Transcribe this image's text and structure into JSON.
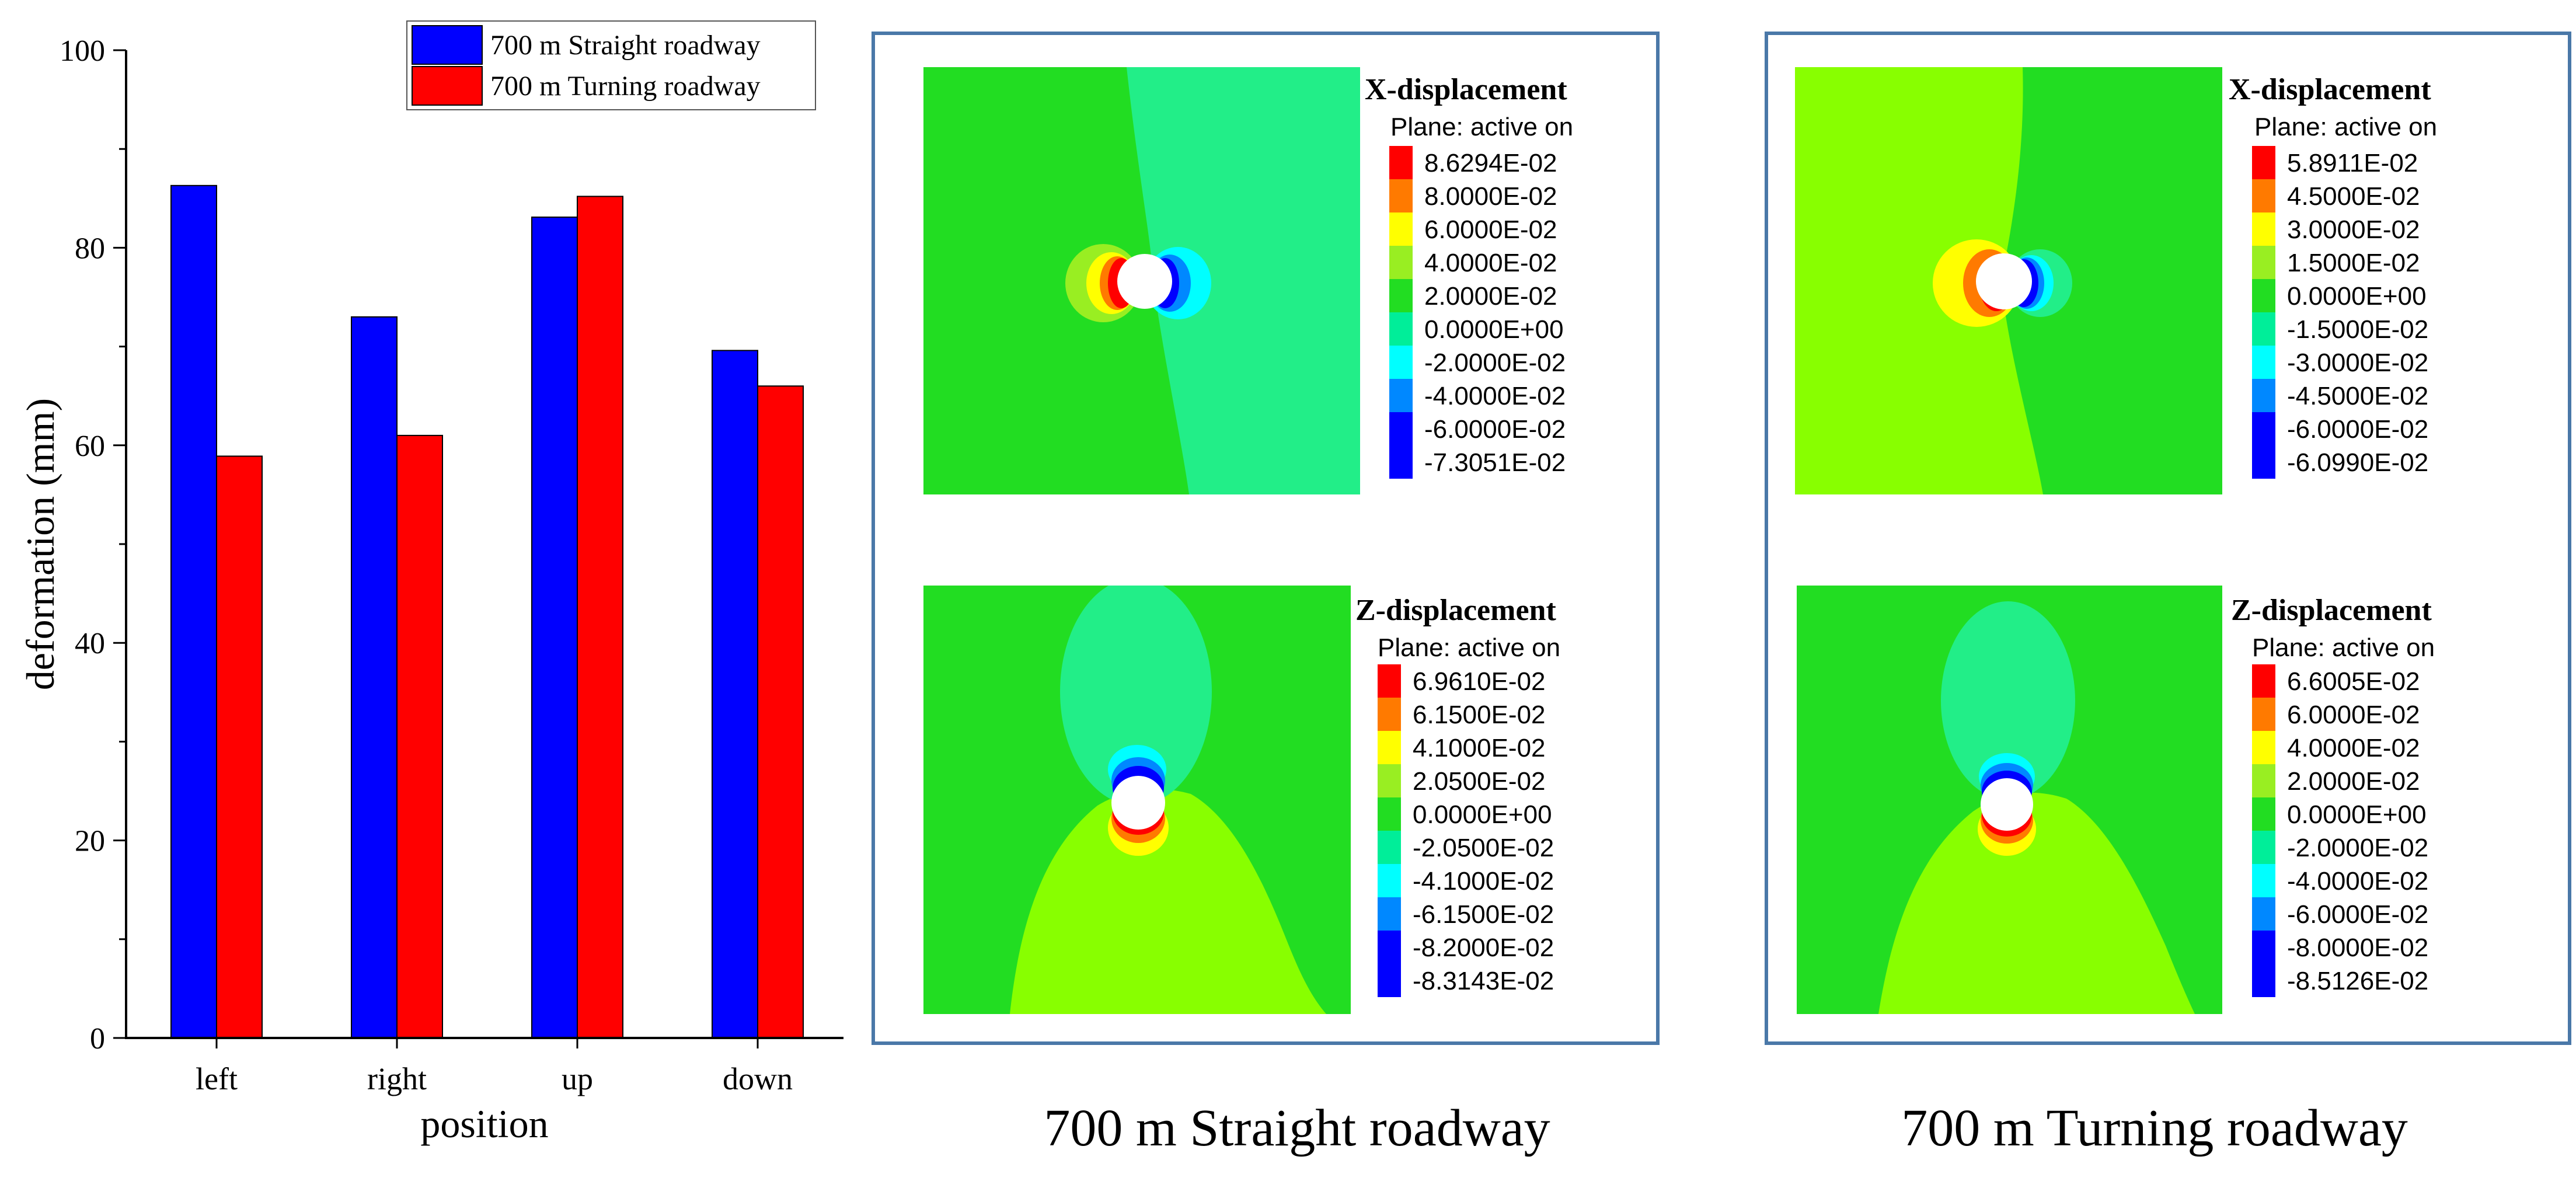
{
  "chart_data": {
    "type": "bar",
    "categories": [
      "left",
      "right",
      "up",
      "down"
    ],
    "series": [
      {
        "name": "700 m Straight roadway",
        "color": "#0000ff",
        "values": [
          86.3,
          73.0,
          83.1,
          69.6
        ]
      },
      {
        "name": "700 m Turning roadway",
        "color": "#ff0000",
        "values": [
          58.9,
          61.0,
          85.2,
          66.0
        ]
      }
    ],
    "title": "",
    "xlabel": "position",
    "ylabel": "deformation (mm)",
    "ylim": [
      0,
      100
    ],
    "yticks": [
      "0",
      "20",
      "40",
      "60",
      "80",
      "100"
    ],
    "legend_position": "top-right",
    "grid": false
  },
  "contour_panels": {
    "straight": {
      "caption": "700 m Straight roadway",
      "x_plot": {
        "title": "X-displacement",
        "subtitle": "Plane: active on",
        "labels": [
          "8.6294E-02",
          "8.0000E-02",
          "6.0000E-02",
          "4.0000E-02",
          "2.0000E-02",
          "0.0000E+00",
          "-2.0000E-02",
          "-4.0000E-02",
          "-6.0000E-02",
          "-7.3051E-02"
        ]
      },
      "z_plot": {
        "title": "Z-displacement",
        "subtitle": "Plane: active on",
        "labels": [
          "6.9610E-02",
          "6.1500E-02",
          "4.1000E-02",
          "2.0500E-02",
          "0.0000E+00",
          "-2.0500E-02",
          "-4.1000E-02",
          "-6.1500E-02",
          "-8.2000E-02",
          "-8.3143E-02"
        ]
      }
    },
    "turning": {
      "caption": "700 m Turning roadway",
      "x_plot": {
        "title": "X-displacement",
        "subtitle": "Plane: active on",
        "labels": [
          "5.8911E-02",
          "4.5000E-02",
          "3.0000E-02",
          "1.5000E-02",
          "0.0000E+00",
          "-1.5000E-02",
          "-3.0000E-02",
          "-4.5000E-02",
          "-6.0000E-02",
          "-6.0990E-02"
        ]
      },
      "z_plot": {
        "title": "Z-displacement",
        "subtitle": "Plane: active on",
        "labels": [
          "6.6005E-02",
          "6.0000E-02",
          "4.0000E-02",
          "2.0000E-02",
          "0.0000E+00",
          "-2.0000E-02",
          "-4.0000E-02",
          "-6.0000E-02",
          "-8.0000E-02",
          "-8.5126E-02"
        ]
      }
    }
  },
  "colormap": [
    "#ff0000",
    "#ff7a00",
    "#ffff00",
    "#99ee22",
    "#22dd22",
    "#00ee99",
    "#00ffff",
    "#0088ff",
    "#0000ff",
    "#0000ff"
  ]
}
